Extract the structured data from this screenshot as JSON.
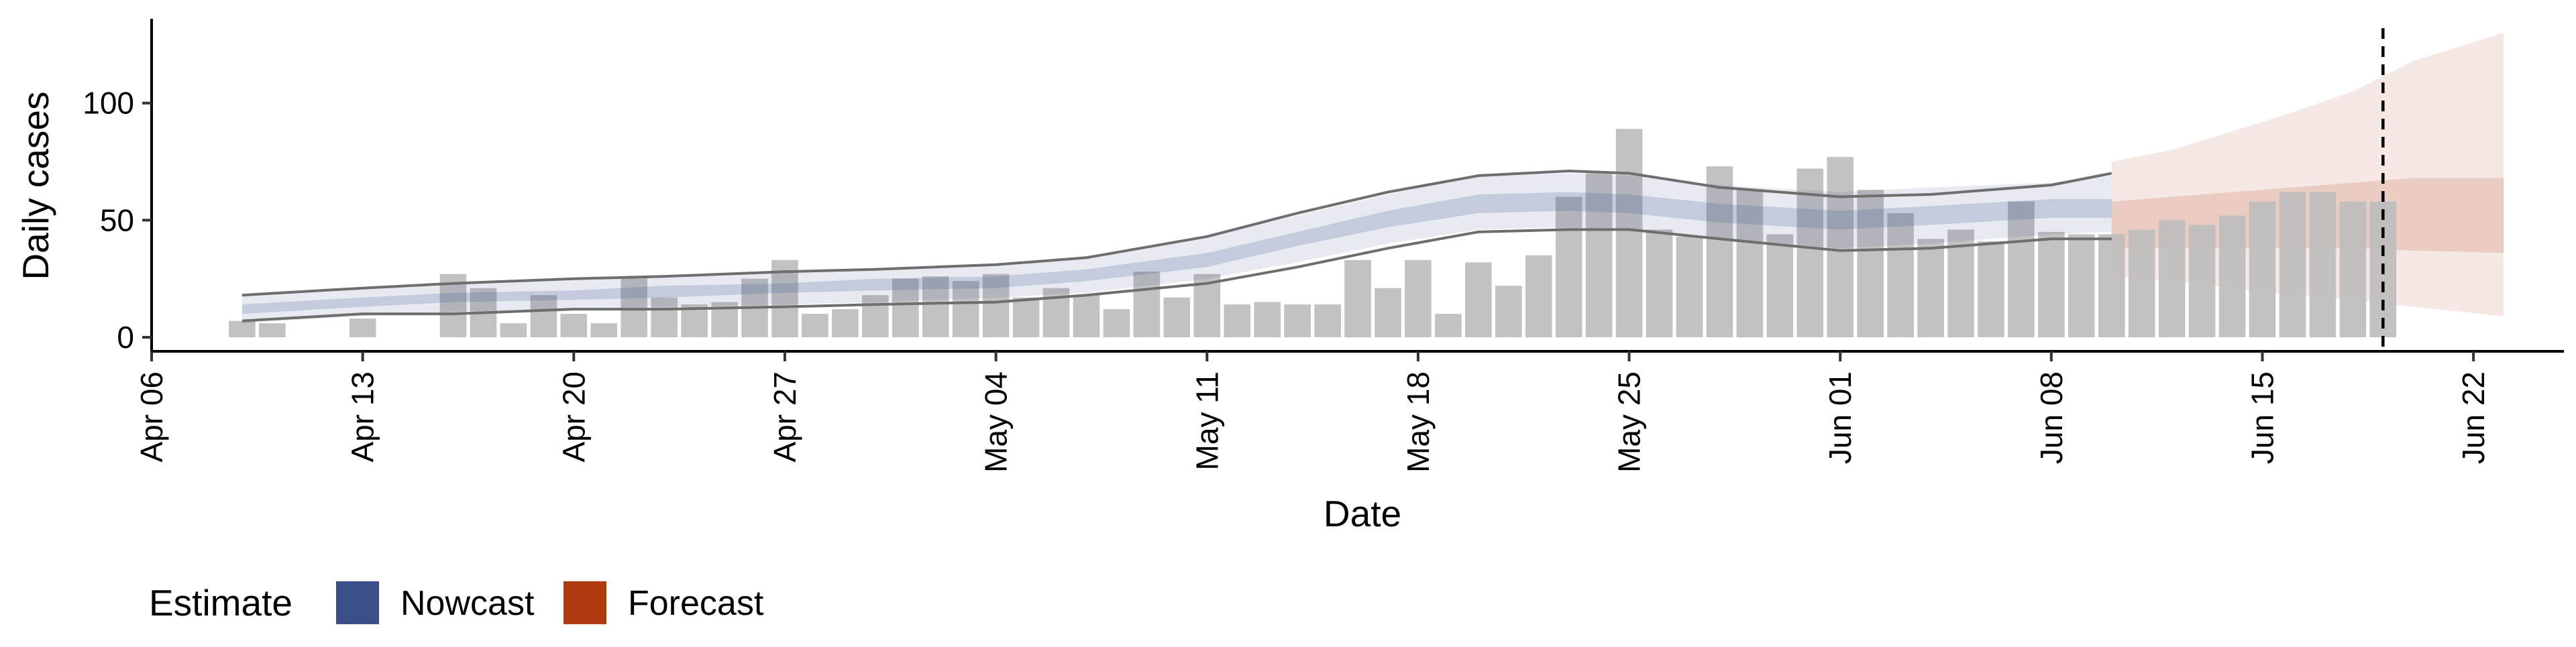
{
  "chart_data": {
    "type": "bar",
    "title": "",
    "xlabel": "Date",
    "ylabel": "Daily cases",
    "x_tick_labels": [
      "Apr 06",
      "Apr 13",
      "Apr 20",
      "Apr 27",
      "May 04",
      "May 11",
      "May 18",
      "May 25",
      "Jun 01",
      "Jun 08",
      "Jun 15",
      "Jun 22"
    ],
    "x_tick_dates": [
      "2020-04-06",
      "2020-04-13",
      "2020-04-20",
      "2020-04-27",
      "2020-05-04",
      "2020-05-11",
      "2020-05-18",
      "2020-05-25",
      "2020-06-01",
      "2020-06-08",
      "2020-06-15",
      "2020-06-22"
    ],
    "xlim": [
      "2020-04-06",
      "2020-06-25"
    ],
    "y_ticks": [
      0,
      50,
      100
    ],
    "y_tick_labels": [
      "0",
      "50",
      "100"
    ],
    "ylim": [
      -6,
      136
    ],
    "grid": false,
    "reference_line_date": "2020-06-19",
    "bars": {
      "color": "#bdbdbd",
      "dates": [
        "2020-04-09",
        "2020-04-10",
        "2020-04-13",
        "2020-04-16",
        "2020-04-17",
        "2020-04-18",
        "2020-04-19",
        "2020-04-20",
        "2020-04-21",
        "2020-04-22",
        "2020-04-23",
        "2020-04-24",
        "2020-04-25",
        "2020-04-26",
        "2020-04-27",
        "2020-04-28",
        "2020-04-29",
        "2020-04-30",
        "2020-05-01",
        "2020-05-02",
        "2020-05-03",
        "2020-05-04",
        "2020-05-05",
        "2020-05-06",
        "2020-05-07",
        "2020-05-08",
        "2020-05-09",
        "2020-05-10",
        "2020-05-11",
        "2020-05-12",
        "2020-05-13",
        "2020-05-14",
        "2020-05-15",
        "2020-05-16",
        "2020-05-17",
        "2020-05-18",
        "2020-05-19",
        "2020-05-20",
        "2020-05-21",
        "2020-05-22",
        "2020-05-23",
        "2020-05-24",
        "2020-05-25",
        "2020-05-26",
        "2020-05-27",
        "2020-05-28",
        "2020-05-29",
        "2020-05-30",
        "2020-05-31",
        "2020-06-01",
        "2020-06-02",
        "2020-06-03",
        "2020-06-04",
        "2020-06-05",
        "2020-06-06",
        "2020-06-07",
        "2020-06-08",
        "2020-06-09",
        "2020-06-10",
        "2020-06-11",
        "2020-06-12",
        "2020-06-13",
        "2020-06-14",
        "2020-06-15",
        "2020-06-16",
        "2020-06-17",
        "2020-06-18",
        "2020-06-19"
      ],
      "values": [
        7,
        6,
        8,
        27,
        21,
        6,
        18,
        10,
        6,
        26,
        17,
        14,
        15,
        25,
        33,
        10,
        12,
        18,
        25,
        26,
        24,
        27,
        17,
        21,
        18,
        12,
        28,
        17,
        27,
        14,
        15,
        14,
        14,
        33,
        21,
        33,
        10,
        32,
        22,
        35,
        60,
        70,
        89,
        46,
        43,
        73,
        63,
        44,
        72,
        77,
        63,
        53,
        42,
        46,
        41,
        58,
        45,
        44,
        44,
        46,
        50,
        48,
        52,
        58,
        62,
        62,
        58,
        58
      ]
    },
    "nowcast": {
      "name": "Nowcast",
      "color": "#3b4f8a",
      "dates": [
        "2020-04-09",
        "2020-04-13",
        "2020-04-16",
        "2020-04-20",
        "2020-04-23",
        "2020-04-27",
        "2020-04-30",
        "2020-05-04",
        "2020-05-07",
        "2020-05-11",
        "2020-05-14",
        "2020-05-17",
        "2020-05-20",
        "2020-05-23",
        "2020-05-25",
        "2020-05-28",
        "2020-06-01",
        "2020-06-04",
        "2020-06-08",
        "2020-06-10"
      ],
      "median": [
        12,
        15,
        17,
        18,
        19,
        21,
        22,
        23,
        26,
        33,
        42,
        50,
        57,
        58,
        57,
        53,
        50,
        52,
        55,
        55
      ],
      "lower_50": [
        10,
        13,
        15,
        16,
        17,
        19,
        20,
        21,
        24,
        30,
        39,
        47,
        53,
        54,
        53,
        49,
        46,
        48,
        51,
        51
      ],
      "upper_50": [
        14,
        17,
        19,
        20,
        22,
        23,
        25,
        26,
        29,
        36,
        45,
        54,
        61,
        62,
        61,
        57,
        54,
        56,
        59,
        59
      ],
      "lower_90": [
        6,
        9,
        11,
        12,
        13,
        14,
        15,
        17,
        19,
        25,
        32,
        40,
        46,
        47,
        46,
        42,
        38,
        40,
        44,
        45
      ],
      "upper_90": [
        18,
        21,
        23,
        25,
        26,
        28,
        29,
        31,
        34,
        43,
        52,
        61,
        69,
        70,
        69,
        65,
        62,
        64,
        66,
        69
      ],
      "outer_lower": [
        7,
        10,
        10,
        12,
        12,
        13,
        14,
        15,
        18,
        23,
        30,
        38,
        45,
        46,
        46,
        42,
        37,
        38,
        42,
        42
      ],
      "outer_upper": [
        18,
        21,
        23,
        25,
        26,
        28,
        29,
        31,
        34,
        43,
        53,
        62,
        69,
        71,
        70,
        64,
        60,
        61,
        65,
        70
      ]
    },
    "forecast": {
      "name": "Forecast",
      "color": "#b03a0f",
      "dates": [
        "2020-06-10",
        "2020-06-12",
        "2020-06-14",
        "2020-06-16",
        "2020-06-18",
        "2020-06-20",
        "2020-06-23"
      ],
      "lower_50": [
        38,
        38,
        38,
        38,
        38,
        37,
        36
      ],
      "upper_50": [
        58,
        60,
        62,
        64,
        66,
        68,
        68
      ],
      "lower_90": [
        26,
        24,
        21,
        18,
        16,
        13,
        9
      ],
      "upper_90": [
        75,
        80,
        88,
        96,
        105,
        118,
        130
      ]
    },
    "legend": {
      "title": "Estimate",
      "position": "bottom-left",
      "items": [
        {
          "label": "Nowcast",
          "color": "#3b4f8a"
        },
        {
          "label": "Forecast",
          "color": "#b03a0f"
        }
      ]
    }
  }
}
